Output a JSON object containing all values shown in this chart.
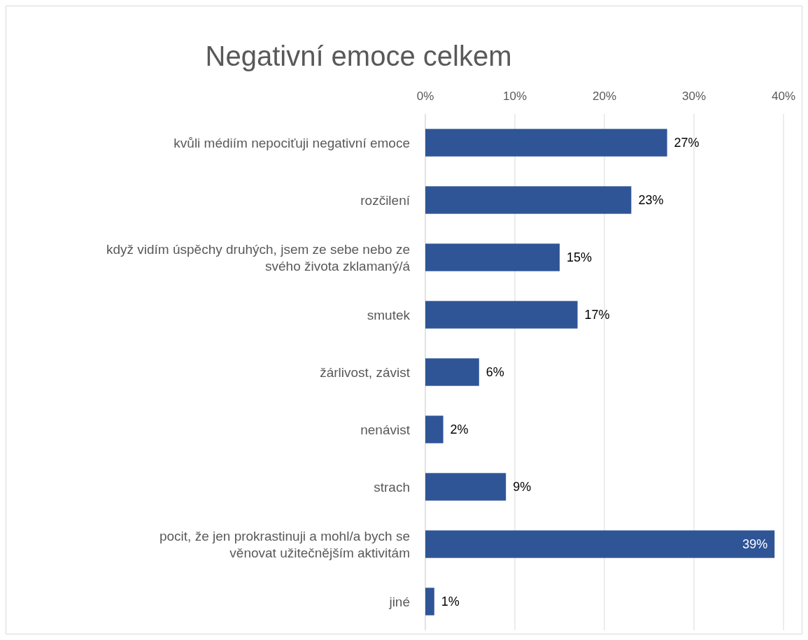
{
  "chart_data": {
    "type": "bar",
    "orientation": "horizontal",
    "title": "Negativní emoce celkem",
    "categories": [
      "kvůli médiím nepociťuji negativní emoce",
      "rozčilení",
      "když vidím úspěchy druhých, jsem ze sebe nebo ze svého života zklamaný/á",
      "smutek",
      "žárlivost, závist",
      "nenávist",
      "strach",
      "pocit, že jen prokrastinuji a mohl/a bych se věnovat užitečnějším aktivitám",
      "jiné"
    ],
    "values": [
      27,
      23,
      15,
      17,
      6,
      2,
      9,
      39,
      1
    ],
    "value_labels": [
      "27%",
      "23%",
      "15%",
      "17%",
      "6%",
      "2%",
      "9%",
      "39%",
      "1%"
    ],
    "color": "#2f5597",
    "xlim": [
      0,
      40
    ],
    "xticks": [
      {
        "value": 0,
        "label": "0%"
      },
      {
        "value": 10,
        "label": "10%"
      },
      {
        "value": 20,
        "label": "20%"
      },
      {
        "value": 30,
        "label": "30%"
      },
      {
        "value": 40,
        "label": "40%"
      }
    ],
    "grid": true
  }
}
